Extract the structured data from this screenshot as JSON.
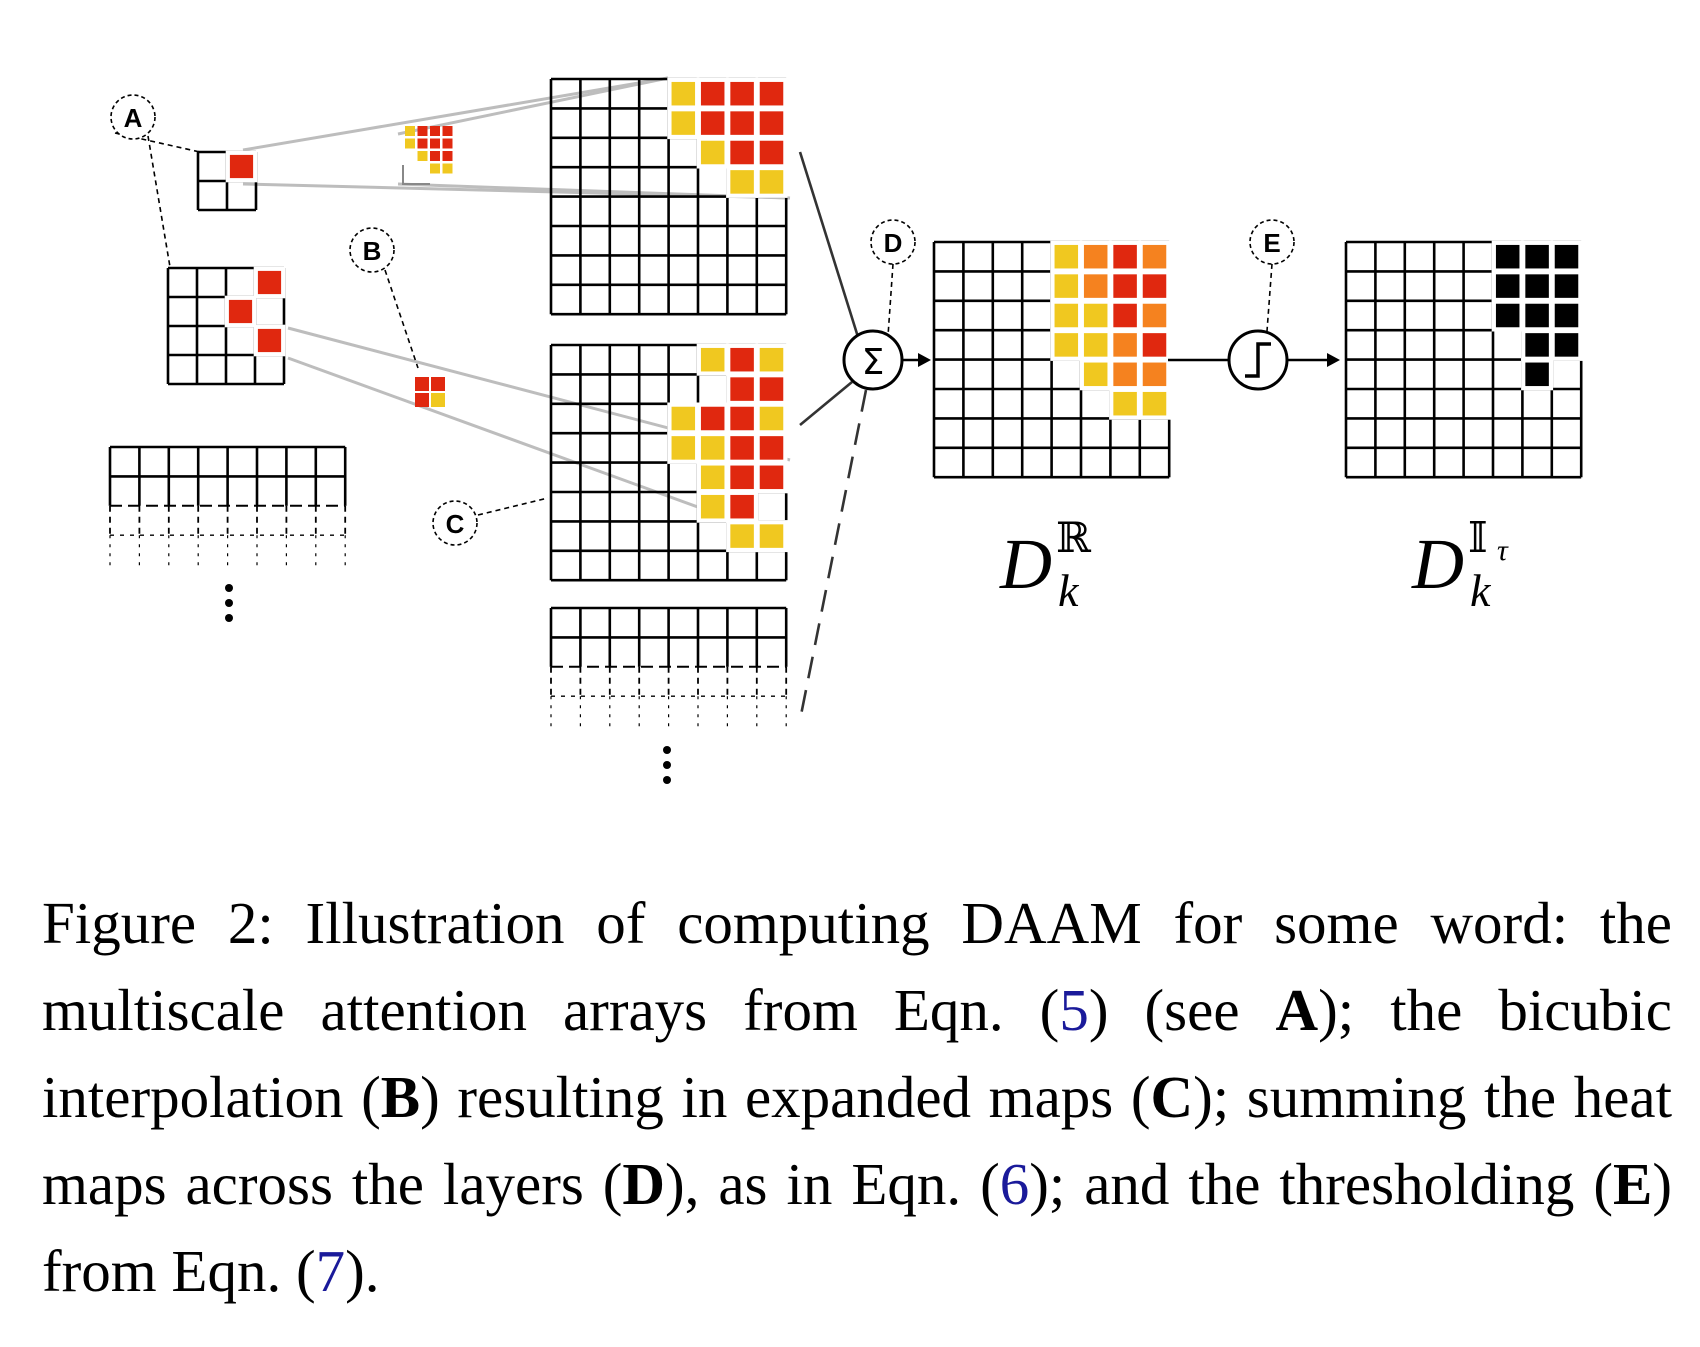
{
  "labels": {
    "A": "A",
    "B": "B",
    "C": "C",
    "D": "D",
    "E": "E"
  },
  "operators": {
    "sum": "Σ",
    "threshold": "threshold-step-icon"
  },
  "math": {
    "real_map": {
      "base": "D",
      "sub": "k",
      "sup": "ℝ"
    },
    "binary_map": {
      "base": "D",
      "sub": "k",
      "sup": "𝕀",
      "sup_sub": "τ"
    }
  },
  "colors": {
    "red": "#e0280f",
    "yellow": "#f0c820",
    "orange": "#f5821f",
    "black": "#000000",
    "connector": "#bdbdbd"
  },
  "caption": {
    "t1": "Figure 2:  Illustration of computing DAAM for some word: the multiscale attention arrays from Eqn. (",
    "ref5": "5",
    "t2": ") (see ",
    "bA": "A",
    "t3": "); the bicubic interpolation (",
    "bB": "B",
    "t4": ") resulting in expanded maps (",
    "bC": "C",
    "t5": "); summing the heat maps across the layers (",
    "bD": "D",
    "t6": "), as in Eqn. (",
    "ref6": "6",
    "t7": "); and the thresholding (",
    "bE": "E",
    "t8": ") from Eqn. (",
    "ref7": "7",
    "t9": ")."
  }
}
